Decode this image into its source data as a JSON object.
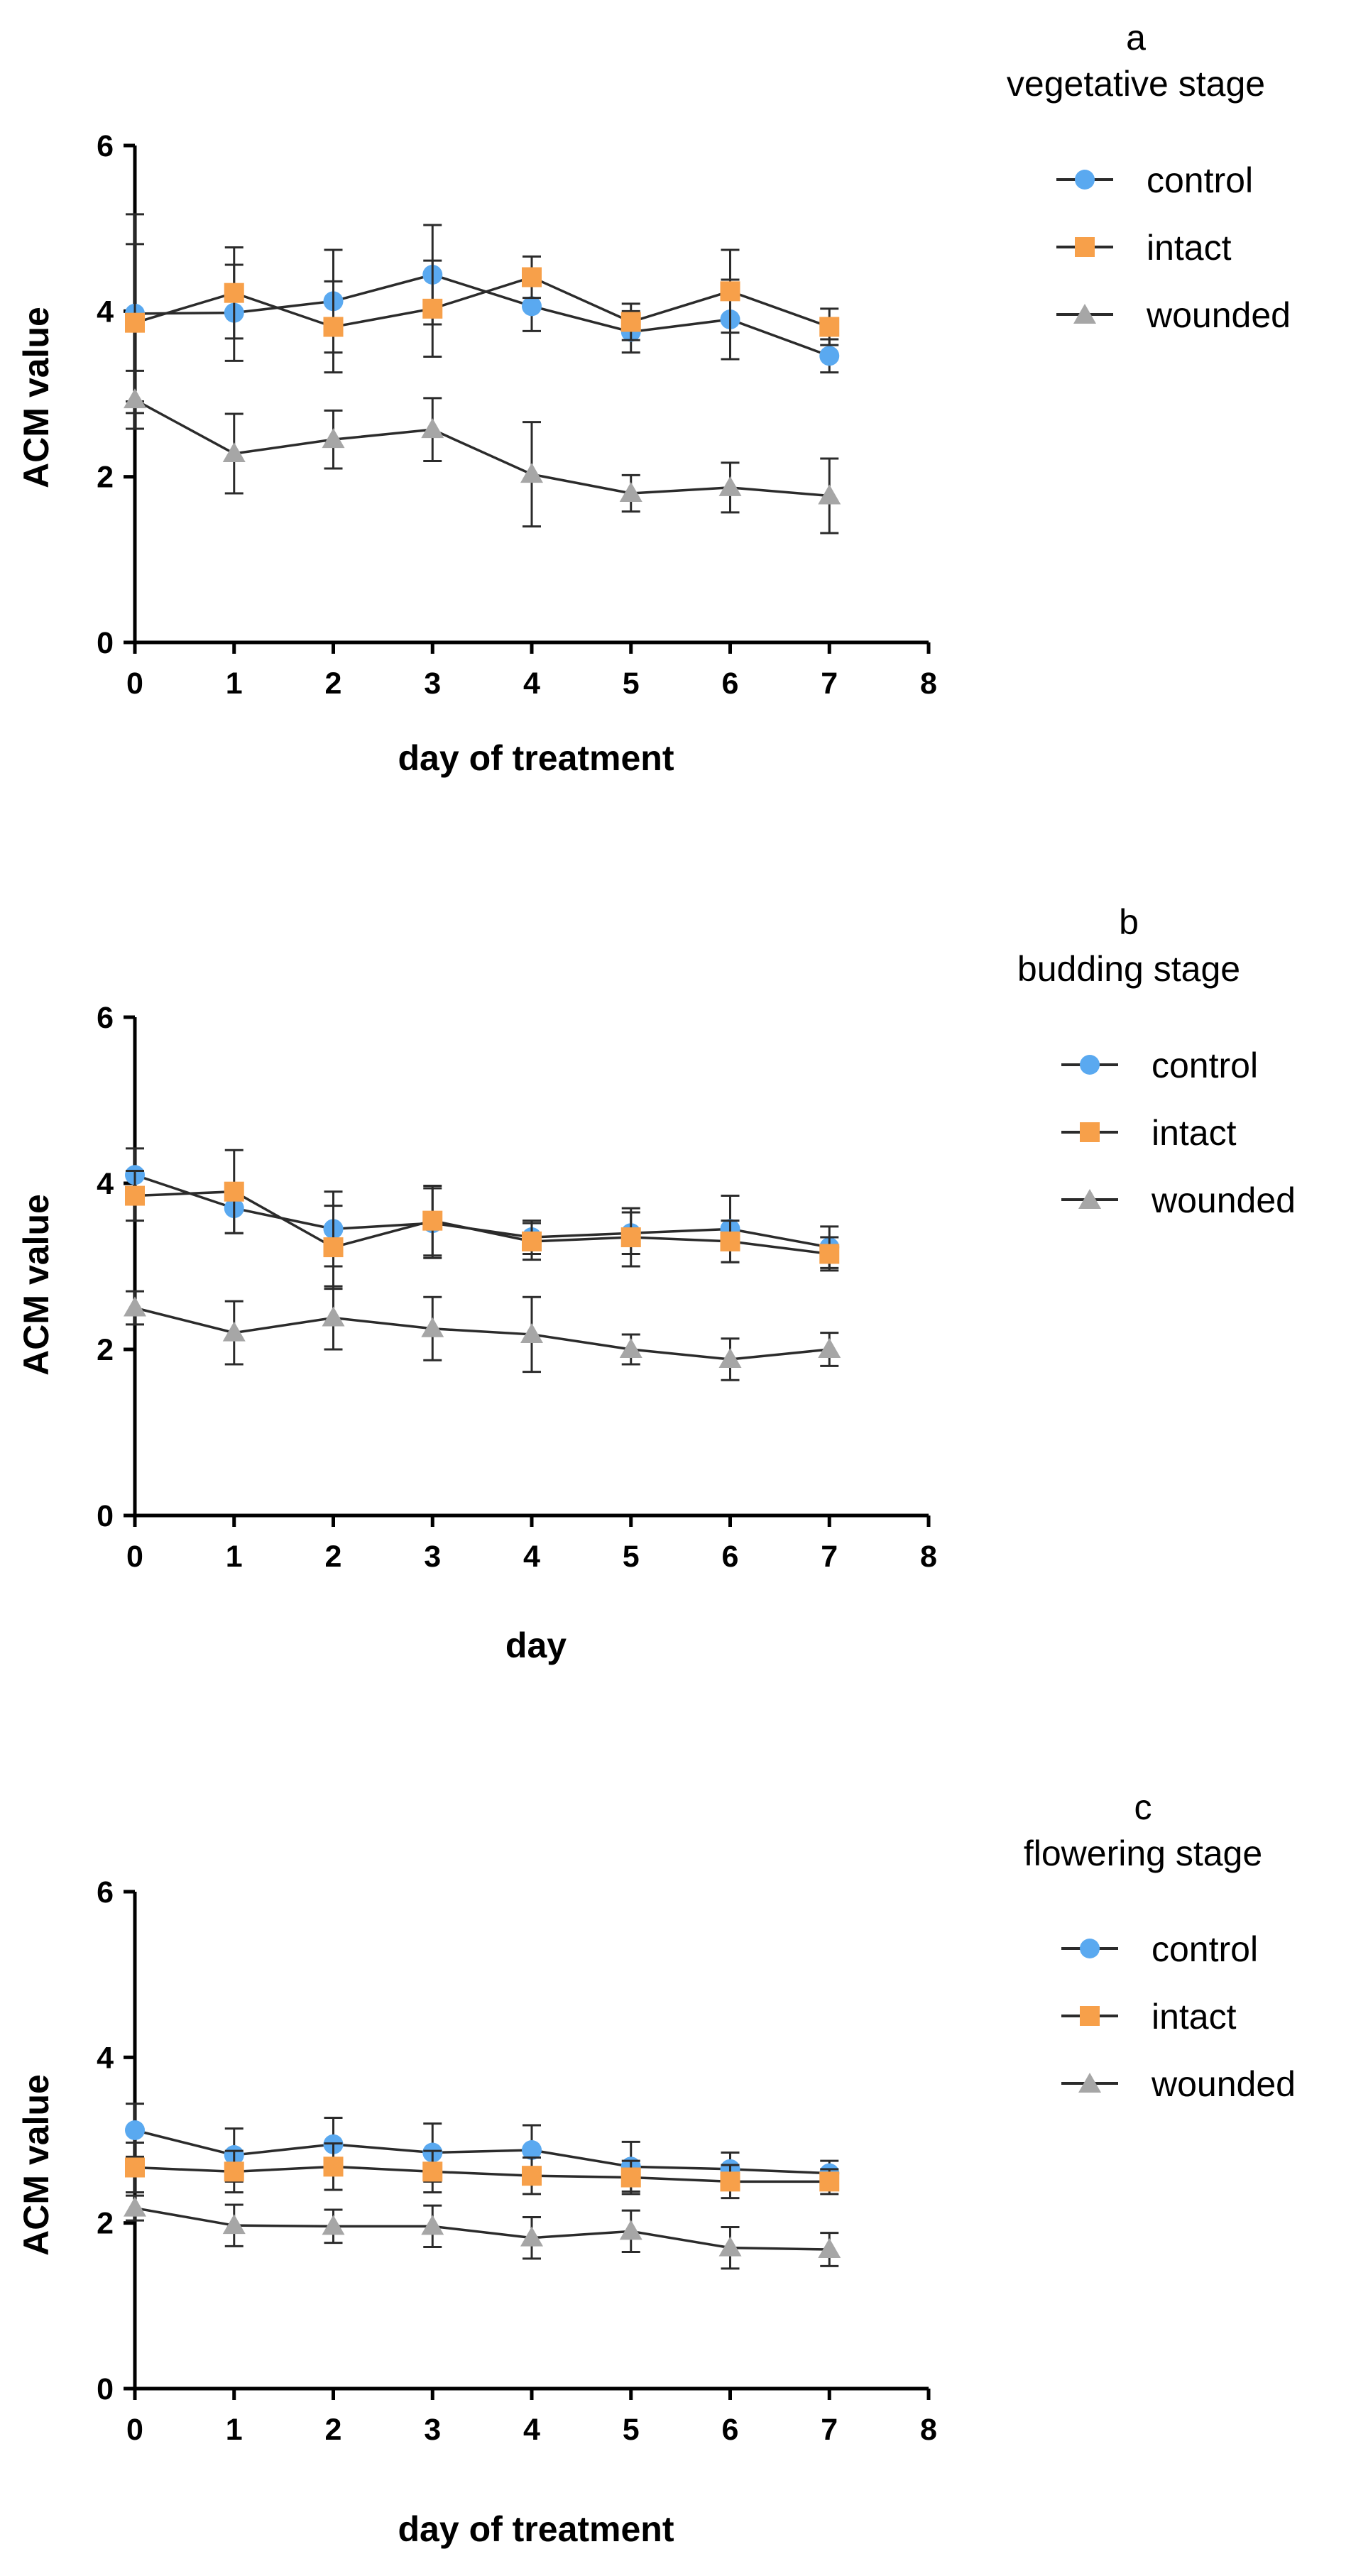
{
  "colors": {
    "control": "#5aa9f0",
    "intact": "#f7a04a",
    "wounded": "#a6a6a6",
    "line": "#2b2b2b",
    "axis": "#000000"
  },
  "chart_data": [
    {
      "type": "line",
      "panel_letter": "a",
      "title": "vegetative stage",
      "xlabel": "day of treatment",
      "ylabel": "ACM value",
      "xlim": [
        0,
        8
      ],
      "ylim": [
        0,
        6
      ],
      "xticks": [
        0,
        1,
        2,
        3,
        4,
        5,
        6,
        7,
        8
      ],
      "yticks": [
        0,
        2,
        4,
        6
      ],
      "x": [
        0,
        1,
        2,
        3,
        4,
        5,
        6,
        7
      ],
      "legend_position": "top-right",
      "series": [
        {
          "name": "control",
          "marker": "circle",
          "values": [
            3.97,
            3.98,
            4.12,
            4.44,
            4.06,
            3.75,
            3.9,
            3.46
          ],
          "errors": [
            1.2,
            0.58,
            0.62,
            0.6,
            0.3,
            0.25,
            0.48,
            0.2
          ]
        },
        {
          "name": "intact",
          "marker": "square",
          "values": [
            3.86,
            4.22,
            3.81,
            4.03,
            4.41,
            3.87,
            4.24,
            3.81
          ],
          "errors": [
            0.95,
            0.55,
            0.55,
            0.58,
            0.25,
            0.22,
            0.5,
            0.22
          ]
        },
        {
          "name": "wounded",
          "marker": "triangle",
          "values": [
            2.93,
            2.28,
            2.45,
            2.57,
            2.03,
            1.8,
            1.87,
            1.77
          ],
          "errors": [
            0.35,
            0.48,
            0.35,
            0.38,
            0.63,
            0.22,
            0.3,
            0.45
          ]
        }
      ]
    },
    {
      "type": "line",
      "panel_letter": "b",
      "title": "budding stage",
      "xlabel": "day",
      "ylabel": "ACM value",
      "xlim": [
        0,
        8
      ],
      "ylim": [
        0,
        6
      ],
      "xticks": [
        0,
        1,
        2,
        3,
        4,
        5,
        6,
        7,
        8
      ],
      "yticks": [
        0,
        2,
        4,
        6
      ],
      "x": [
        0,
        1,
        2,
        3,
        4,
        5,
        6,
        7
      ],
      "legend_position": "top-right",
      "series": [
        {
          "name": "control",
          "marker": "circle",
          "values": [
            4.1,
            3.7,
            3.45,
            3.52,
            3.35,
            3.4,
            3.45,
            3.23
          ],
          "errors": [
            0.32,
            0.3,
            0.45,
            0.42,
            0.2,
            0.25,
            0.4,
            0.25
          ]
        },
        {
          "name": "intact",
          "marker": "square",
          "values": [
            3.85,
            3.9,
            3.23,
            3.55,
            3.3,
            3.35,
            3.3,
            3.15
          ],
          "errors": [
            0.3,
            0.5,
            0.5,
            0.42,
            0.22,
            0.35,
            0.25,
            0.2
          ]
        },
        {
          "name": "wounded",
          "marker": "triangle",
          "values": [
            2.5,
            2.2,
            2.38,
            2.25,
            2.18,
            2.0,
            1.88,
            2.0
          ],
          "errors": [
            0.2,
            0.38,
            0.38,
            0.38,
            0.45,
            0.18,
            0.25,
            0.2
          ]
        }
      ]
    },
    {
      "type": "line",
      "panel_letter": "c",
      "title": "flowering stage",
      "xlabel": "day of treatment",
      "ylabel": "ACM value",
      "xlim": [
        0,
        8
      ],
      "ylim": [
        0,
        6
      ],
      "xticks": [
        0,
        1,
        2,
        3,
        4,
        5,
        6,
        7,
        8
      ],
      "yticks": [
        0,
        2,
        4,
        6
      ],
      "x": [
        0,
        1,
        2,
        3,
        4,
        5,
        6,
        7
      ],
      "legend_position": "top-right",
      "series": [
        {
          "name": "control",
          "marker": "circle",
          "values": [
            3.12,
            2.82,
            2.95,
            2.85,
            2.88,
            2.68,
            2.65,
            2.6
          ],
          "errors": [
            0.32,
            0.32,
            0.32,
            0.35,
            0.3,
            0.3,
            0.2,
            0.15
          ]
        },
        {
          "name": "intact",
          "marker": "square",
          "values": [
            2.67,
            2.62,
            2.68,
            2.62,
            2.57,
            2.55,
            2.5,
            2.5
          ],
          "errors": [
            0.3,
            0.25,
            0.28,
            0.25,
            0.22,
            0.2,
            0.2,
            0.15
          ]
        },
        {
          "name": "wounded",
          "marker": "triangle",
          "values": [
            2.18,
            1.97,
            1.96,
            1.96,
            1.82,
            1.9,
            1.7,
            1.68
          ],
          "errors": [
            0.15,
            0.25,
            0.2,
            0.25,
            0.25,
            0.25,
            0.25,
            0.2
          ]
        }
      ]
    }
  ]
}
